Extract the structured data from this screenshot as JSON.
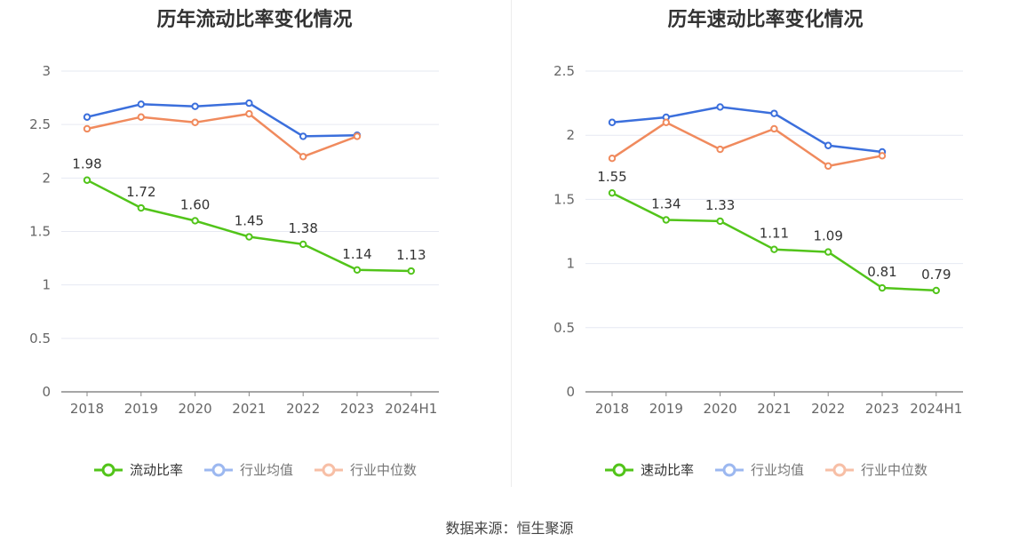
{
  "source": "数据来源：恒生聚源",
  "chart_data": [
    {
      "type": "line",
      "title": "历年流动比率变化情况",
      "categories": [
        "2018",
        "2019",
        "2020",
        "2021",
        "2022",
        "2023",
        "2024H1"
      ],
      "ylim": [
        0,
        3
      ],
      "yticks": [
        "0",
        "0.5",
        "1",
        "1.5",
        "2",
        "2.5",
        "3"
      ],
      "series": [
        {
          "name": "流动比率",
          "color": "#52c41a",
          "values": [
            1.98,
            1.72,
            1.6,
            1.45,
            1.38,
            1.14,
            1.13
          ],
          "labels": [
            "1.98",
            "1.72",
            "1.60",
            "1.45",
            "1.38",
            "1.14",
            "1.13"
          ]
        },
        {
          "name": "行业均值",
          "color": "#3b6fdc",
          "values": [
            2.57,
            2.69,
            2.67,
            2.7,
            2.39,
            2.4,
            null
          ]
        },
        {
          "name": "行业中位数",
          "color": "#f08a5d",
          "values": [
            2.46,
            2.57,
            2.52,
            2.6,
            2.2,
            2.39,
            null
          ]
        }
      ]
    },
    {
      "type": "line",
      "title": "历年速动比率变化情况",
      "categories": [
        "2018",
        "2019",
        "2020",
        "2021",
        "2022",
        "2023",
        "2024H1"
      ],
      "ylim": [
        0,
        2.5
      ],
      "yticks": [
        "0",
        "0.5",
        "1",
        "1.5",
        "2",
        "2.5"
      ],
      "series": [
        {
          "name": "速动比率",
          "color": "#52c41a",
          "values": [
            1.55,
            1.34,
            1.33,
            1.11,
            1.09,
            0.81,
            0.79
          ],
          "labels": [
            "1.55",
            "1.34",
            "1.33",
            "1.11",
            "1.09",
            "0.81",
            "0.79"
          ]
        },
        {
          "name": "行业均值",
          "color": "#3b6fdc",
          "values": [
            2.1,
            2.14,
            2.22,
            2.17,
            1.92,
            1.87,
            null
          ]
        },
        {
          "name": "行业中位数",
          "color": "#f08a5d",
          "values": [
            1.82,
            2.1,
            1.89,
            2.05,
            1.76,
            1.84,
            null
          ]
        }
      ]
    }
  ]
}
